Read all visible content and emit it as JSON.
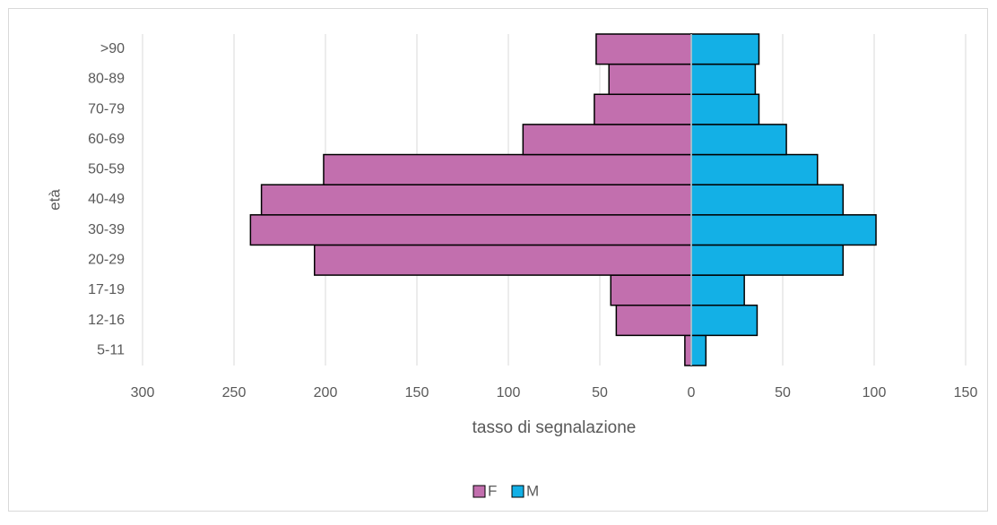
{
  "chart_data": {
    "type": "pyramid",
    "ylabel": "età",
    "xlabel": "tasso di segnalazione",
    "categories": [
      "5-11",
      "12-16",
      "17-19",
      "20-29",
      "30-39",
      "40-49",
      "50-59",
      "60-69",
      "70-79",
      "80-89",
      ">90"
    ],
    "series": [
      {
        "name": "F",
        "color": "#c26fae",
        "values": [
          -3.5,
          -41,
          -44,
          -206,
          -241,
          -235,
          -201,
          -92,
          -53,
          -45,
          -52
        ]
      },
      {
        "name": "M",
        "color": "#13b0e6",
        "values": [
          8,
          36,
          29,
          83,
          101,
          83,
          69,
          52,
          37,
          35,
          37
        ]
      }
    ],
    "xlim": [
      -300,
      150
    ],
    "xticks": [
      {
        "value": -300,
        "label": "300"
      },
      {
        "value": -250,
        "label": "250"
      },
      {
        "value": -200,
        "label": "200"
      },
      {
        "value": -150,
        "label": "150"
      },
      {
        "value": -100,
        "label": "100"
      },
      {
        "value": -50,
        "label": "50"
      },
      0,
      50,
      100,
      150
    ],
    "grid": true,
    "legend": "bottom"
  }
}
